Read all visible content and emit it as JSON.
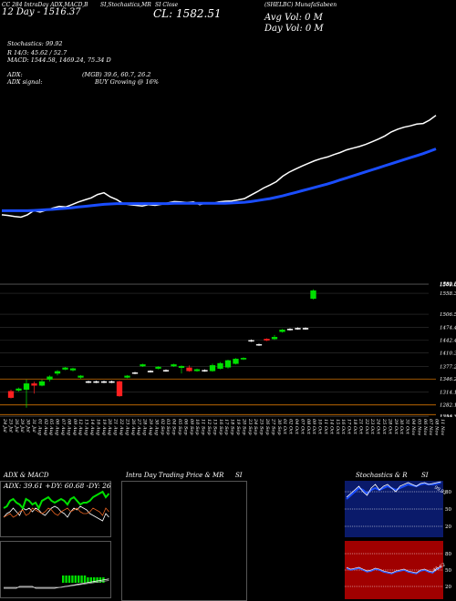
{
  "header": {
    "left_line1": "CC 284 IntraDay ADX,MACD,B",
    "left_line2": "12 Day - 1516.37",
    "mid1": "SI,Stochastics,MR",
    "mid2": "SI Close",
    "cl_label": "CL: 1582.51",
    "right_name": "(SHELBC) MunafaSabeen",
    "avg_vol": "Avg Vol: 0   M",
    "day_vol": "Day Vol: 0   M"
  },
  "indicators": {
    "stoch": "Stochastics: 99.92",
    "r": "R   14/3: 45.62  / 52.7",
    "macd": "MACD: 1544.58,  1469.24,  75.34  D",
    "adx": "ADX:",
    "mgb": "(MGB) 39.6,  60.7,  26.2",
    "adx_signal": "ADX  signal:",
    "buy": "BUY Growing @ 16%"
  },
  "chart_data": [
    {
      "type": "line",
      "name": "price-and-sma",
      "x": [
        0,
        1,
        2,
        3,
        4,
        5,
        6,
        7,
        8,
        9,
        10,
        11,
        12,
        13,
        14,
        15,
        16,
        17,
        18,
        19,
        20,
        21,
        22,
        23,
        24,
        25,
        26,
        27,
        28,
        29,
        30,
        31,
        32,
        33,
        34,
        35,
        36,
        37,
        38,
        39,
        40,
        41,
        42,
        43,
        44,
        45,
        46,
        47,
        48,
        49,
        50,
        51,
        52,
        53,
        54,
        55,
        56,
        57,
        58,
        59,
        60,
        61,
        62,
        63,
        64,
        65,
        66,
        67,
        68
      ],
      "series": [
        {
          "color": "#ffffff",
          "values": [
            1288,
            1286,
            1283,
            1281,
            1288,
            1300,
            1296,
            1302,
            1308,
            1313,
            1311,
            1318,
            1326,
            1332,
            1338,
            1348,
            1353,
            1341,
            1333,
            1321,
            1318,
            1316,
            1314,
            1318,
            1316,
            1319,
            1323,
            1327,
            1326,
            1324,
            1326,
            1318,
            1323,
            1322,
            1326,
            1328,
            1329,
            1332,
            1336,
            1346,
            1356,
            1367,
            1376,
            1386,
            1402,
            1414,
            1423,
            1432,
            1440,
            1448,
            1454,
            1459,
            1466,
            1472,
            1480,
            1485,
            1490,
            1496,
            1504,
            1512,
            1521,
            1533,
            1541,
            1547,
            1551,
            1556,
            1558,
            1568,
            1582
          ]
        },
        {
          "color": "#1a4dff",
          "values": [
            1300,
            1300,
            1300,
            1300,
            1300,
            1301,
            1302,
            1303,
            1304,
            1306,
            1307,
            1309,
            1311,
            1313,
            1315,
            1317,
            1319,
            1320,
            1321,
            1321,
            1321,
            1321,
            1321,
            1321,
            1321,
            1321,
            1321,
            1322,
            1322,
            1322,
            1322,
            1322,
            1322,
            1322,
            1322,
            1322,
            1323,
            1324,
            1325,
            1327,
            1330,
            1333,
            1336,
            1340,
            1344,
            1349,
            1354,
            1359,
            1364,
            1369,
            1374,
            1379,
            1385,
            1391,
            1397,
            1403,
            1409,
            1415,
            1421,
            1427,
            1433,
            1439,
            1445,
            1451,
            1457,
            1463,
            1469,
            1476,
            1483
          ]
        }
      ],
      "ylim": [
        1250,
        1600
      ]
    },
    {
      "type": "bar",
      "name": "candles",
      "y_ticks": [
        "1582.51",
        "1580.63",
        "1579.61",
        "1558.36",
        "1506.5",
        "1474.43",
        "1442.4",
        "1410.34",
        "1377.29",
        "1346.24",
        "1314.18",
        "1282.15",
        "1254.33",
        "1252.33"
      ],
      "ylim": [
        1252,
        1590
      ],
      "candles": [
        [
          1316,
          1300,
          1320,
          1298
        ],
        [
          1318,
          1322,
          1325,
          1315
        ],
        [
          1320,
          1335,
          1345,
          1275
        ],
        [
          1335,
          1330,
          1340,
          1310
        ],
        [
          1330,
          1340,
          1345,
          1328
        ],
        [
          1345,
          1352,
          1355,
          1340
        ],
        [
          1360,
          1365,
          1368,
          1355
        ],
        [
          1370,
          1374,
          1376,
          1368
        ],
        [
          1368,
          1372,
          1374,
          1365
        ],
        [
          1350,
          1354,
          1356,
          1346
        ],
        [
          1338,
          1340,
          1342,
          1336
        ],
        [
          1338,
          1340,
          1342,
          1336
        ],
        [
          1338,
          1340,
          1342,
          1336
        ],
        [
          1338,
          1340,
          1342,
          1336
        ],
        [
          1340,
          1304,
          1342,
          1302
        ],
        [
          1350,
          1354,
          1356,
          1348
        ],
        [
          1360,
          1362,
          1364,
          1358
        ],
        [
          1378,
          1382,
          1384,
          1376
        ],
        [
          1364,
          1366,
          1368,
          1362
        ],
        [
          1372,
          1376,
          1378,
          1370
        ],
        [
          1366,
          1368,
          1370,
          1364
        ],
        [
          1378,
          1382,
          1384,
          1376
        ],
        [
          1374,
          1378,
          1380,
          1360
        ],
        [
          1374,
          1366,
          1380,
          1364
        ],
        [
          1366,
          1370,
          1372,
          1364
        ],
        [
          1366,
          1368,
          1370,
          1364
        ],
        [
          1366,
          1380,
          1384,
          1364
        ],
        [
          1372,
          1385,
          1388,
          1370
        ],
        [
          1375,
          1392,
          1394,
          1372
        ],
        [
          1384,
          1396,
          1398,
          1382
        ],
        [
          1395,
          1398,
          1400,
          1393
        ],
        [
          1440,
          1442,
          1444,
          1438
        ],
        [
          1430,
          1432,
          1434,
          1428
        ],
        [
          1445,
          1442,
          1447,
          1440
        ],
        [
          1445,
          1450,
          1455,
          1443
        ],
        [
          1463,
          1468,
          1470,
          1461
        ],
        [
          1468,
          1470,
          1472,
          1466
        ],
        [
          1470,
          1472,
          1474,
          1468
        ],
        [
          1470,
          1472,
          1474,
          1468
        ],
        [
          1545,
          1565,
          1568,
          1543
        ]
      ],
      "x_labels": [
        "24 Jul",
        "25 Jul",
        "26 Jul",
        "29 Jul",
        "30 Jul",
        "31 Jul",
        "01 Aug",
        "02 Aug",
        "05 Aug",
        "06 Aug",
        "07 Aug",
        "08 Aug",
        "09 Aug",
        "12 Aug",
        "13 Aug",
        "14 Aug",
        "16 Aug",
        "19 Aug",
        "20 Aug",
        "21 Aug",
        "22 Aug",
        "23 Aug",
        "26 Aug",
        "27 Aug",
        "28 Aug",
        "29 Aug",
        "30 Aug",
        "02 Sep",
        "03 Sep",
        "04 Sep",
        "05 Sep",
        "06 Sep",
        "09 Sep",
        "10 Sep",
        "11 Sep",
        "12 Sep",
        "13 Sep",
        "16 Sep",
        "17 Sep",
        "18 Sep",
        "19 Sep",
        "20 Sep",
        "23 Sep",
        "24 Sep",
        "25 Sep",
        "26 Sep",
        "27 Sep",
        "30 Sep",
        "01 Oct",
        "02 Oct",
        "04 Oct",
        "07 Oct",
        "08 Oct",
        "09 Oct",
        "10 Oct",
        "11 Oct",
        "14 Oct",
        "15 Oct",
        "16 Oct",
        "17 Oct",
        "18 Oct",
        "21 Oct",
        "22 Oct",
        "23 Oct",
        "24 Oct",
        "25 Oct",
        "28 Oct",
        "29 Oct",
        "30 Oct",
        "31 Oct",
        "04 Nov",
        "05 Nov",
        "06 Nov",
        "07 Nov",
        "08 Nov",
        "11 Nov"
      ]
    }
  ],
  "panels": {
    "adx_title": "ADX  & MACD",
    "adx_values": "ADX: 39.61  +DY: 60.68  -DY: 26.25",
    "intra_title": "Intra  Day Trading Price  & MR",
    "intra_si": "SI",
    "stoch_title": "Stochastics  & R",
    "stoch_si": "SI",
    "stoch_ticks": [
      "80",
      "50",
      "20"
    ],
    "rsi_ticks": [
      "80",
      "50",
      "20"
    ],
    "stoch_end": "99.92",
    "rsi_end": "45.62"
  },
  "colors": {
    "up": "#00e000",
    "down": "#ff2020",
    "sma": "#1a4dff",
    "rsi_bg": "#a00000",
    "stoch_bg": "#0a1a6a",
    "orange": "#d07000"
  }
}
